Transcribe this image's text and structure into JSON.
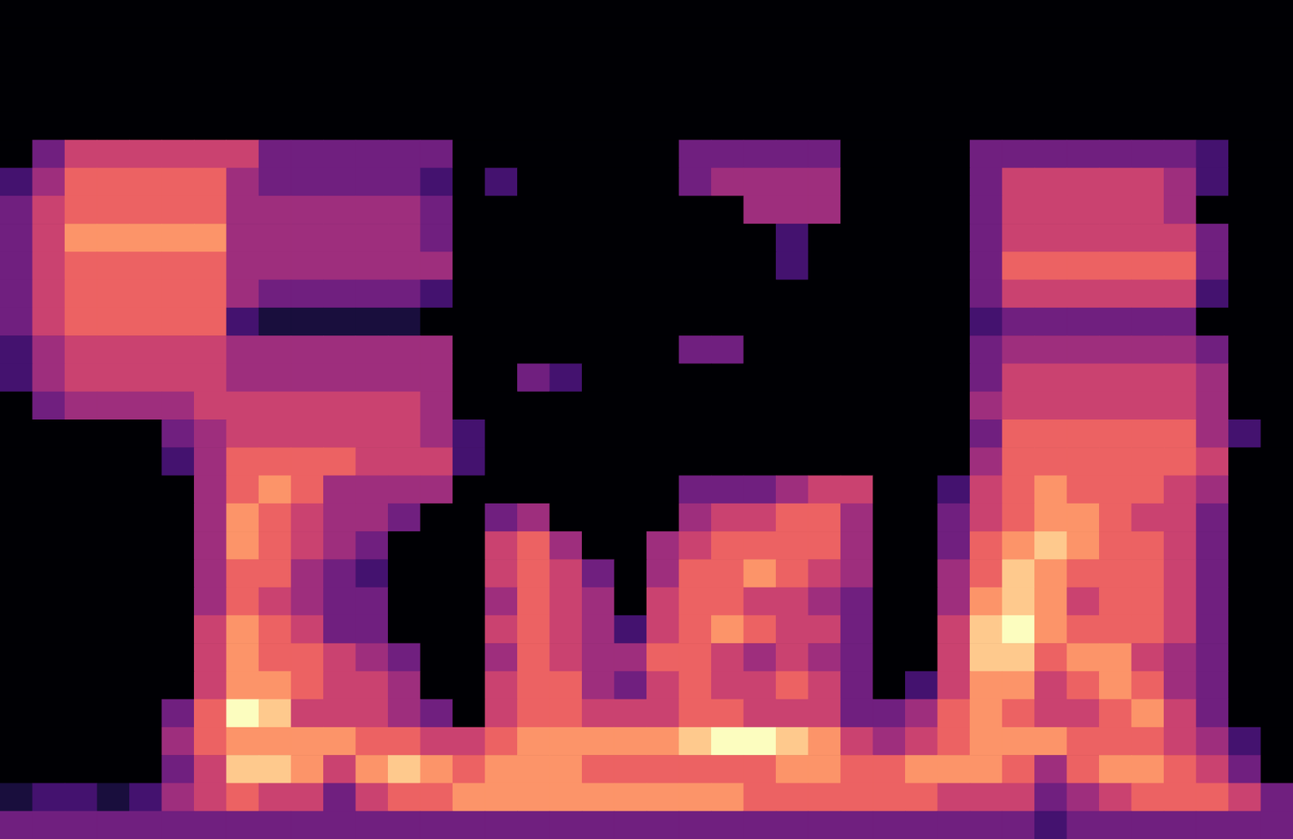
{
  "chart_data": {
    "type": "heatmap",
    "tick_labels": false,
    "color": "magma",
    "cells": [
      [
        0,
        0,
        0,
        0,
        0,
        0,
        0,
        0,
        0,
        0,
        0,
        0,
        0,
        0,
        0,
        0,
        0,
        0,
        0,
        0,
        0,
        0,
        0,
        0,
        0,
        0,
        0,
        0,
        0,
        0,
        0,
        0,
        0,
        0,
        0,
        0,
        0,
        0,
        0,
        0
      ],
      [
        0,
        0,
        0,
        0,
        0,
        0,
        0,
        0,
        0,
        0,
        0,
        0,
        0,
        0,
        0,
        0,
        0,
        0,
        0,
        0,
        0,
        0,
        0,
        0,
        0,
        0,
        0,
        0,
        0,
        0,
        0,
        0,
        0,
        0,
        0,
        0,
        0,
        0,
        0,
        0
      ],
      [
        0,
        0,
        0,
        0,
        0,
        0,
        0,
        0,
        0,
        0,
        0,
        0,
        0,
        0,
        0,
        0,
        0,
        0,
        0,
        0,
        0,
        0,
        0,
        0,
        0,
        0,
        0,
        0,
        0,
        0,
        0,
        0,
        0,
        0,
        0,
        0,
        0,
        0,
        0,
        0
      ],
      [
        0,
        0,
        0,
        0,
        0,
        0,
        0,
        0,
        0,
        0,
        0,
        0,
        0,
        0,
        0,
        0,
        0,
        0,
        0,
        0,
        0,
        0,
        0,
        0,
        0,
        0,
        0,
        0,
        0,
        0,
        0,
        0,
        0,
        0,
        0,
        0,
        0,
        0,
        0,
        0
      ],
      [
        0,
        0,
        0,
        0,
        0,
        0,
        0,
        0,
        0,
        0,
        0,
        0,
        0,
        0,
        0,
        0,
        0,
        0,
        0,
        0,
        0,
        0,
        0,
        0,
        0,
        0,
        0,
        0,
        0,
        0,
        0,
        0,
        0,
        0,
        0,
        0,
        0,
        0,
        0,
        0
      ],
      [
        0,
        3,
        5,
        5,
        5,
        5,
        5,
        5,
        3,
        3,
        3,
        3,
        3,
        3,
        0,
        0,
        0,
        0,
        0,
        0,
        0,
        3,
        3,
        3,
        3,
        3,
        0,
        0,
        0,
        0,
        3,
        3,
        3,
        3,
        3,
        3,
        3,
        2,
        0,
        0
      ],
      [
        2,
        4,
        6,
        6,
        6,
        6,
        6,
        4,
        3,
        3,
        3,
        3,
        3,
        2,
        0,
        2,
        0,
        0,
        0,
        0,
        0,
        3,
        4,
        4,
        4,
        4,
        0,
        0,
        0,
        0,
        3,
        5,
        5,
        5,
        5,
        5,
        4,
        2,
        0,
        0
      ],
      [
        3,
        5,
        6,
        6,
        6,
        6,
        6,
        4,
        4,
        4,
        4,
        4,
        4,
        3,
        0,
        0,
        0,
        0,
        0,
        0,
        0,
        0,
        0,
        4,
        4,
        4,
        0,
        0,
        0,
        0,
        3,
        5,
        5,
        5,
        5,
        5,
        4,
        0,
        0,
        0
      ],
      [
        3,
        5,
        7,
        7,
        7,
        7,
        7,
        4,
        4,
        4,
        4,
        4,
        4,
        3,
        0,
        0,
        0,
        0,
        0,
        0,
        0,
        0,
        0,
        0,
        2,
        0,
        0,
        0,
        0,
        0,
        3,
        5,
        5,
        5,
        5,
        5,
        5,
        3,
        0,
        0
      ],
      [
        3,
        5,
        6,
        6,
        6,
        6,
        6,
        4,
        4,
        4,
        4,
        4,
        4,
        4,
        0,
        0,
        0,
        0,
        0,
        0,
        0,
        0,
        0,
        0,
        2,
        0,
        0,
        0,
        0,
        0,
        3,
        6,
        6,
        6,
        6,
        6,
        6,
        3,
        0,
        0
      ],
      [
        3,
        5,
        6,
        6,
        6,
        6,
        6,
        4,
        3,
        3,
        3,
        3,
        3,
        2,
        0,
        0,
        0,
        0,
        0,
        0,
        0,
        0,
        0,
        0,
        0,
        0,
        0,
        0,
        0,
        0,
        3,
        5,
        5,
        5,
        5,
        5,
        5,
        2,
        0,
        0
      ],
      [
        3,
        5,
        6,
        6,
        6,
        6,
        6,
        2,
        1,
        1,
        1,
        1,
        1,
        0,
        0,
        0,
        0,
        0,
        0,
        0,
        0,
        0,
        0,
        0,
        0,
        0,
        0,
        0,
        0,
        0,
        2,
        3,
        3,
        3,
        3,
        3,
        3,
        0,
        0,
        0
      ],
      [
        2,
        4,
        5,
        5,
        5,
        5,
        5,
        4,
        4,
        4,
        4,
        4,
        4,
        4,
        0,
        0,
        0,
        0,
        0,
        0,
        0,
        3,
        3,
        0,
        0,
        0,
        0,
        0,
        0,
        0,
        3,
        4,
        4,
        4,
        4,
        4,
        4,
        3,
        0,
        0
      ],
      [
        2,
        4,
        5,
        5,
        5,
        5,
        5,
        4,
        4,
        4,
        4,
        4,
        4,
        4,
        0,
        0,
        3,
        2,
        0,
        0,
        0,
        0,
        0,
        0,
        0,
        0,
        0,
        0,
        0,
        0,
        3,
        5,
        5,
        5,
        5,
        5,
        5,
        4,
        0,
        0
      ],
      [
        0,
        3,
        4,
        4,
        4,
        4,
        5,
        5,
        5,
        5,
        5,
        5,
        5,
        4,
        0,
        0,
        0,
        0,
        0,
        0,
        0,
        0,
        0,
        0,
        0,
        0,
        0,
        0,
        0,
        0,
        4,
        5,
        5,
        5,
        5,
        5,
        5,
        4,
        0,
        0
      ],
      [
        0,
        0,
        0,
        0,
        0,
        3,
        4,
        5,
        5,
        5,
        5,
        5,
        5,
        4,
        2,
        0,
        0,
        0,
        0,
        0,
        0,
        0,
        0,
        0,
        0,
        0,
        0,
        0,
        0,
        0,
        3,
        6,
        6,
        6,
        6,
        6,
        6,
        4,
        2,
        0
      ],
      [
        0,
        0,
        0,
        0,
        0,
        2,
        4,
        6,
        6,
        6,
        6,
        5,
        5,
        5,
        2,
        0,
        0,
        0,
        0,
        0,
        0,
        0,
        0,
        0,
        0,
        0,
        0,
        0,
        0,
        0,
        4,
        6,
        6,
        6,
        6,
        6,
        6,
        5,
        0,
        0
      ],
      [
        0,
        0,
        0,
        0,
        0,
        0,
        4,
        6,
        7,
        6,
        4,
        4,
        4,
        4,
        0,
        0,
        0,
        0,
        0,
        0,
        0,
        3,
        3,
        3,
        4,
        5,
        5,
        0,
        0,
        2,
        5,
        6,
        7,
        6,
        6,
        6,
        5,
        4,
        0,
        0
      ],
      [
        0,
        0,
        0,
        0,
        0,
        0,
        4,
        7,
        6,
        5,
        4,
        4,
        3,
        0,
        0,
        3,
        4,
        0,
        0,
        0,
        0,
        4,
        5,
        5,
        6,
        6,
        4,
        0,
        0,
        3,
        5,
        6,
        7,
        7,
        6,
        5,
        5,
        3,
        0,
        0
      ],
      [
        0,
        0,
        0,
        0,
        0,
        0,
        4,
        7,
        6,
        5,
        4,
        3,
        0,
        0,
        0,
        5,
        6,
        4,
        0,
        0,
        4,
        5,
        6,
        6,
        6,
        6,
        4,
        0,
        0,
        3,
        6,
        7,
        8,
        7,
        6,
        6,
        5,
        3,
        0,
        0
      ],
      [
        0,
        0,
        0,
        0,
        0,
        0,
        4,
        6,
        6,
        4,
        3,
        2,
        0,
        0,
        0,
        5,
        6,
        5,
        3,
        0,
        4,
        6,
        6,
        7,
        6,
        5,
        4,
        0,
        0,
        4,
        6,
        8,
        7,
        6,
        6,
        6,
        5,
        3,
        0,
        0
      ],
      [
        0,
        0,
        0,
        0,
        0,
        0,
        4,
        6,
        5,
        4,
        3,
        3,
        0,
        0,
        0,
        4,
        6,
        5,
        4,
        0,
        5,
        6,
        6,
        5,
        5,
        4,
        3,
        0,
        0,
        4,
        7,
        8,
        7,
        5,
        6,
        6,
        5,
        3,
        0,
        0
      ],
      [
        0,
        0,
        0,
        0,
        0,
        0,
        5,
        7,
        6,
        5,
        3,
        3,
        0,
        0,
        0,
        5,
        6,
        5,
        4,
        2,
        5,
        6,
        7,
        6,
        5,
        5,
        3,
        0,
        0,
        5,
        8,
        9,
        7,
        6,
        6,
        6,
        5,
        3,
        0,
        0
      ],
      [
        0,
        0,
        0,
        0,
        0,
        0,
        5,
        7,
        6,
        6,
        5,
        4,
        3,
        0,
        0,
        4,
        6,
        5,
        4,
        4,
        6,
        6,
        5,
        4,
        5,
        4,
        3,
        0,
        0,
        5,
        8,
        8,
        6,
        7,
        7,
        5,
        4,
        3,
        0,
        0
      ],
      [
        0,
        0,
        0,
        0,
        0,
        0,
        5,
        7,
        7,
        6,
        5,
        5,
        4,
        0,
        0,
        5,
        6,
        6,
        4,
        3,
        5,
        6,
        5,
        5,
        6,
        5,
        3,
        0,
        2,
        5,
        7,
        7,
        5,
        6,
        7,
        6,
        4,
        3,
        0,
        0
      ],
      [
        0,
        0,
        0,
        0,
        0,
        3,
        6,
        9,
        8,
        5,
        5,
        5,
        4,
        3,
        0,
        5,
        6,
        6,
        5,
        5,
        5,
        6,
        6,
        5,
        5,
        5,
        3,
        3,
        4,
        6,
        7,
        6,
        5,
        5,
        6,
        7,
        5,
        3,
        0,
        0
      ],
      [
        0,
        0,
        0,
        0,
        0,
        4,
        6,
        7,
        7,
        7,
        7,
        6,
        6,
        5,
        5,
        6,
        7,
        7,
        7,
        7,
        7,
        8,
        9,
        9,
        8,
        7,
        5,
        4,
        5,
        6,
        7,
        7,
        7,
        6,
        6,
        6,
        5,
        4,
        2,
        0
      ],
      [
        0,
        0,
        0,
        0,
        0,
        3,
        5,
        8,
        8,
        7,
        5,
        7,
        8,
        7,
        6,
        7,
        7,
        7,
        6,
        6,
        6,
        6,
        6,
        6,
        7,
        7,
        6,
        6,
        7,
        7,
        7,
        6,
        4,
        6,
        7,
        7,
        6,
        5,
        3,
        0
      ],
      [
        1,
        2,
        2,
        1,
        2,
        4,
        5,
        6,
        5,
        5,
        3,
        5,
        6,
        6,
        7,
        7,
        7,
        7,
        7,
        7,
        7,
        7,
        7,
        6,
        6,
        6,
        6,
        6,
        6,
        5,
        5,
        5,
        3,
        4,
        5,
        6,
        6,
        6,
        5,
        3
      ],
      [
        3,
        3,
        3,
        3,
        3,
        3,
        3,
        3,
        3,
        3,
        3,
        3,
        3,
        3,
        3,
        3,
        3,
        3,
        3,
        3,
        3,
        3,
        3,
        3,
        3,
        3,
        3,
        3,
        3,
        3,
        3,
        3,
        2,
        3,
        3,
        3,
        3,
        3,
        3,
        3
      ]
    ]
  }
}
